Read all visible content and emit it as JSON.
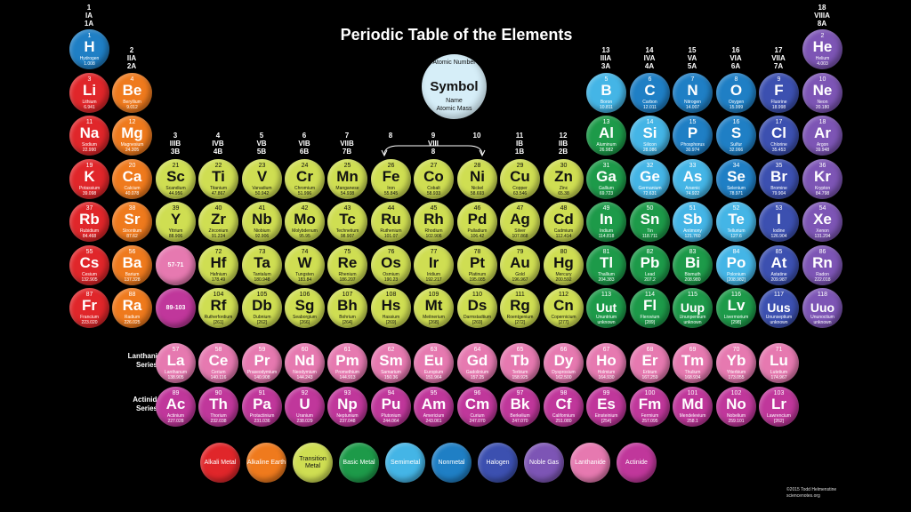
{
  "title": "Periodic Table of the Elements",
  "key": {
    "atomic_number": "Atomic Number",
    "symbol": "Symbol",
    "name": "Name",
    "atomic_mass": "Atomic  Mass"
  },
  "group_labels": [
    {
      "id": "g1",
      "lines": [
        "1",
        "IA",
        "1A"
      ]
    },
    {
      "id": "g2",
      "lines": [
        "2",
        "IIA",
        "2A"
      ]
    },
    {
      "id": "g3",
      "lines": [
        "3",
        "IIIB",
        "3B"
      ]
    },
    {
      "id": "g4",
      "lines": [
        "4",
        "IVB",
        "4B"
      ]
    },
    {
      "id": "g5",
      "lines": [
        "5",
        "VB",
        "5B"
      ]
    },
    {
      "id": "g6",
      "lines": [
        "6",
        "VIB",
        "6B"
      ]
    },
    {
      "id": "g7",
      "lines": [
        "7",
        "VIIB",
        "7B"
      ]
    },
    {
      "id": "g8",
      "lines": [
        "8"
      ]
    },
    {
      "id": "g9",
      "lines": [
        "9",
        "VIII",
        "8"
      ]
    },
    {
      "id": "g10",
      "lines": [
        "10"
      ]
    },
    {
      "id": "g11",
      "lines": [
        "11",
        "IB",
        "1B"
      ]
    },
    {
      "id": "g12",
      "lines": [
        "12",
        "IIB",
        "2B"
      ]
    },
    {
      "id": "g13",
      "lines": [
        "13",
        "IIIA",
        "3A"
      ]
    },
    {
      "id": "g14",
      "lines": [
        "14",
        "IVA",
        "4A"
      ]
    },
    {
      "id": "g15",
      "lines": [
        "15",
        "VA",
        "5A"
      ]
    },
    {
      "id": "g16",
      "lines": [
        "16",
        "VIA",
        "6A"
      ]
    },
    {
      "id": "g17",
      "lines": [
        "17",
        "VIIA",
        "7A"
      ]
    },
    {
      "id": "g18",
      "lines": [
        "18",
        "VIIIA",
        "8A"
      ]
    }
  ],
  "categories": {
    "alkali": {
      "label": "Alkali Metal",
      "color": "#e0262a"
    },
    "alkaline": {
      "label": "Alkaline Earth",
      "color": "#ef7a1d"
    },
    "transition": {
      "label": "Transition Metal",
      "color": "#cfde52"
    },
    "basic": {
      "label": "Basic Metal",
      "color": "#1d9a49"
    },
    "semimetal": {
      "label": "Semimetal",
      "color": "#44b5e6"
    },
    "nonmetal": {
      "label": "Nonmetal",
      "color": "#1f7fc5"
    },
    "halogen": {
      "label": "Halogen",
      "color": "#3c50b0"
    },
    "noble": {
      "label": "Noble Gas",
      "color": "#7d55b5"
    },
    "lanthanide": {
      "label": "Lanthanide",
      "color": "#e679b0"
    },
    "actinide": {
      "label": "Actinide",
      "color": "#c0379b"
    }
  },
  "placeholders": [
    {
      "id": "lan",
      "label": "57-71",
      "color": "#e679b0"
    },
    {
      "id": "act",
      "label": "89-103",
      "color": "#c0379b"
    }
  ],
  "series_labels": {
    "lanthanide": "Lanthanide Series",
    "actinide": "Actinide Series"
  },
  "credit": [
    "©2015 Todd Helmenstine",
    "sciencenotes.org"
  ],
  "elements": [
    {
      "n": 1,
      "s": "H",
      "name": "Hydrogen",
      "m": "1.008",
      "c": "nonmetal"
    },
    {
      "n": 2,
      "s": "He",
      "name": "Helium",
      "m": "4.003",
      "c": "noble"
    },
    {
      "n": 3,
      "s": "Li",
      "name": "Lithium",
      "m": "6.941",
      "c": "alkali"
    },
    {
      "n": 4,
      "s": "Be",
      "name": "Beryllium",
      "m": "9.012",
      "c": "alkaline"
    },
    {
      "n": 5,
      "s": "B",
      "name": "Boron",
      "m": "10.811",
      "c": "semimetal"
    },
    {
      "n": 6,
      "s": "C",
      "name": "Carbon",
      "m": "12.011",
      "c": "nonmetal"
    },
    {
      "n": 7,
      "s": "N",
      "name": "Nitrogen",
      "m": "14.007",
      "c": "nonmetal"
    },
    {
      "n": 8,
      "s": "O",
      "name": "Oxygen",
      "m": "15.999",
      "c": "nonmetal"
    },
    {
      "n": 9,
      "s": "F",
      "name": "Fluorine",
      "m": "18.998",
      "c": "halogen"
    },
    {
      "n": 10,
      "s": "Ne",
      "name": "Neon",
      "m": "20.180",
      "c": "noble"
    },
    {
      "n": 11,
      "s": "Na",
      "name": "Sodium",
      "m": "22.990",
      "c": "alkali"
    },
    {
      "n": 12,
      "s": "Mg",
      "name": "Magnesium",
      "m": "24.305",
      "c": "alkaline"
    },
    {
      "n": 13,
      "s": "Al",
      "name": "Aluminum",
      "m": "26.982",
      "c": "basic"
    },
    {
      "n": 14,
      "s": "Si",
      "name": "Silicon",
      "m": "28.086",
      "c": "semimetal"
    },
    {
      "n": 15,
      "s": "P",
      "name": "Phosphorus",
      "m": "30.974",
      "c": "nonmetal"
    },
    {
      "n": 16,
      "s": "S",
      "name": "Sulfur",
      "m": "32.066",
      "c": "nonmetal"
    },
    {
      "n": 17,
      "s": "Cl",
      "name": "Chlorine",
      "m": "35.453",
      "c": "halogen"
    },
    {
      "n": 18,
      "s": "Ar",
      "name": "Argon",
      "m": "39.948",
      "c": "noble"
    },
    {
      "n": 19,
      "s": "K",
      "name": "Potassium",
      "m": "39.098",
      "c": "alkali"
    },
    {
      "n": 20,
      "s": "Ca",
      "name": "Calcium",
      "m": "40.078",
      "c": "alkaline"
    },
    {
      "n": 21,
      "s": "Sc",
      "name": "Scandium",
      "m": "44.956",
      "c": "transition"
    },
    {
      "n": 22,
      "s": "Ti",
      "name": "Titanium",
      "m": "47.867",
      "c": "transition"
    },
    {
      "n": 23,
      "s": "V",
      "name": "Vanadium",
      "m": "50.942",
      "c": "transition"
    },
    {
      "n": 24,
      "s": "Cr",
      "name": "Chromium",
      "m": "51.996",
      "c": "transition"
    },
    {
      "n": 25,
      "s": "Mn",
      "name": "Manganese",
      "m": "54.938",
      "c": "transition"
    },
    {
      "n": 26,
      "s": "Fe",
      "name": "Iron",
      "m": "55.845",
      "c": "transition"
    },
    {
      "n": 27,
      "s": "Co",
      "name": "Cobalt",
      "m": "58.933",
      "c": "transition"
    },
    {
      "n": 28,
      "s": "Ni",
      "name": "Nickel",
      "m": "58.693",
      "c": "transition"
    },
    {
      "n": 29,
      "s": "Cu",
      "name": "Copper",
      "m": "63.546",
      "c": "transition"
    },
    {
      "n": 30,
      "s": "Zn",
      "name": "Zinc",
      "m": "65.38",
      "c": "transition"
    },
    {
      "n": 31,
      "s": "Ga",
      "name": "Gallium",
      "m": "69.723",
      "c": "basic"
    },
    {
      "n": 32,
      "s": "Ge",
      "name": "Germanium",
      "m": "72.631",
      "c": "semimetal"
    },
    {
      "n": 33,
      "s": "As",
      "name": "Arsenic",
      "m": "74.922",
      "c": "semimetal"
    },
    {
      "n": 34,
      "s": "Se",
      "name": "Selenium",
      "m": "78.971",
      "c": "nonmetal"
    },
    {
      "n": 35,
      "s": "Br",
      "name": "Bromine",
      "m": "79.904",
      "c": "halogen"
    },
    {
      "n": 36,
      "s": "Kr",
      "name": "Krypton",
      "m": "84.798",
      "c": "noble"
    },
    {
      "n": 37,
      "s": "Rb",
      "name": "Rubidium",
      "m": "84.468",
      "c": "alkali"
    },
    {
      "n": 38,
      "s": "Sr",
      "name": "Strontium",
      "m": "87.62",
      "c": "alkaline"
    },
    {
      "n": 39,
      "s": "Y",
      "name": "Yttrium",
      "m": "88.906",
      "c": "transition"
    },
    {
      "n": 40,
      "s": "Zr",
      "name": "Zirconium",
      "m": "91.224",
      "c": "transition"
    },
    {
      "n": 41,
      "s": "Nb",
      "name": "Niobium",
      "m": "92.906",
      "c": "transition"
    },
    {
      "n": 42,
      "s": "Mo",
      "name": "Molybdenum",
      "m": "95.95",
      "c": "transition"
    },
    {
      "n": 43,
      "s": "Tc",
      "name": "Technetium",
      "m": "98.907",
      "c": "transition"
    },
    {
      "n": 44,
      "s": "Ru",
      "name": "Ruthenium",
      "m": "101.07",
      "c": "transition"
    },
    {
      "n": 45,
      "s": "Rh",
      "name": "Rhodium",
      "m": "102.906",
      "c": "transition"
    },
    {
      "n": 46,
      "s": "Pd",
      "name": "Palladium",
      "m": "106.42",
      "c": "transition"
    },
    {
      "n": 47,
      "s": "Ag",
      "name": "Silver",
      "m": "107.868",
      "c": "transition"
    },
    {
      "n": 48,
      "s": "Cd",
      "name": "Cadmium",
      "m": "112.414",
      "c": "transition"
    },
    {
      "n": 49,
      "s": "In",
      "name": "Indium",
      "m": "114.818",
      "c": "basic"
    },
    {
      "n": 50,
      "s": "Sn",
      "name": "Tin",
      "m": "118.711",
      "c": "basic"
    },
    {
      "n": 51,
      "s": "Sb",
      "name": "Antimony",
      "m": "121.760",
      "c": "semimetal"
    },
    {
      "n": 52,
      "s": "Te",
      "name": "Tellurium",
      "m": "127.6",
      "c": "semimetal"
    },
    {
      "n": 53,
      "s": "I",
      "name": "Iodine",
      "m": "126.904",
      "c": "halogen"
    },
    {
      "n": 54,
      "s": "Xe",
      "name": "Xenon",
      "m": "131.294",
      "c": "noble"
    },
    {
      "n": 55,
      "s": "Cs",
      "name": "Cesium",
      "m": "132.905",
      "c": "alkali"
    },
    {
      "n": 56,
      "s": "Ba",
      "name": "Barium",
      "m": "137.328",
      "c": "alkaline"
    },
    {
      "n": 72,
      "s": "Hf",
      "name": "Hafnium",
      "m": "178.49",
      "c": "transition"
    },
    {
      "n": 73,
      "s": "Ta",
      "name": "Tantalum",
      "m": "180.948",
      "c": "transition"
    },
    {
      "n": 74,
      "s": "W",
      "name": "Tungsten",
      "m": "183.84",
      "c": "transition"
    },
    {
      "n": 75,
      "s": "Re",
      "name": "Rhenium",
      "m": "186.207",
      "c": "transition"
    },
    {
      "n": 76,
      "s": "Os",
      "name": "Osmium",
      "m": "190.23",
      "c": "transition"
    },
    {
      "n": 77,
      "s": "Ir",
      "name": "Iridium",
      "m": "192.217",
      "c": "transition"
    },
    {
      "n": 78,
      "s": "Pt",
      "name": "Platinum",
      "m": "195.085",
      "c": "transition"
    },
    {
      "n": 79,
      "s": "Au",
      "name": "Gold",
      "m": "196.967",
      "c": "transition"
    },
    {
      "n": 80,
      "s": "Hg",
      "name": "Mercury",
      "m": "200.592",
      "c": "transition"
    },
    {
      "n": 81,
      "s": "Tl",
      "name": "Thallium",
      "m": "204.383",
      "c": "basic"
    },
    {
      "n": 82,
      "s": "Pb",
      "name": "Lead",
      "m": "207.2",
      "c": "basic"
    },
    {
      "n": 83,
      "s": "Bi",
      "name": "Bismuth",
      "m": "208.980",
      "c": "basic"
    },
    {
      "n": 84,
      "s": "Po",
      "name": "Polonium",
      "m": "[208.982]",
      "c": "semimetal"
    },
    {
      "n": 85,
      "s": "At",
      "name": "Astatine",
      "m": "209.987",
      "c": "halogen"
    },
    {
      "n": 86,
      "s": "Rn",
      "name": "Radon",
      "m": "222.018",
      "c": "noble"
    },
    {
      "n": 87,
      "s": "Fr",
      "name": "Francium",
      "m": "223.020",
      "c": "alkali"
    },
    {
      "n": 88,
      "s": "Ra",
      "name": "Radium",
      "m": "226.025",
      "c": "alkaline"
    },
    {
      "n": 104,
      "s": "Rf",
      "name": "Rutherfordium",
      "m": "[261]",
      "c": "transition"
    },
    {
      "n": 105,
      "s": "Db",
      "name": "Dubnium",
      "m": "[262]",
      "c": "transition"
    },
    {
      "n": 106,
      "s": "Sg",
      "name": "Seaborgium",
      "m": "[266]",
      "c": "transition"
    },
    {
      "n": 107,
      "s": "Bh",
      "name": "Bohrium",
      "m": "[264]",
      "c": "transition"
    },
    {
      "n": 108,
      "s": "Hs",
      "name": "Hassium",
      "m": "[269]",
      "c": "transition"
    },
    {
      "n": 109,
      "s": "Mt",
      "name": "Meitnerium",
      "m": "[268]",
      "c": "transition"
    },
    {
      "n": 110,
      "s": "Ds",
      "name": "Darmstadtium",
      "m": "[269]",
      "c": "transition"
    },
    {
      "n": 111,
      "s": "Rg",
      "name": "Roentgenium",
      "m": "[272]",
      "c": "transition"
    },
    {
      "n": 112,
      "s": "Cn",
      "name": "Copernicium",
      "m": "[277]",
      "c": "transition"
    },
    {
      "n": 113,
      "s": "Uut",
      "name": "Ununtrium",
      "m": "unknown",
      "c": "basic"
    },
    {
      "n": 114,
      "s": "Fl",
      "name": "Flerovium",
      "m": "[289]",
      "c": "basic"
    },
    {
      "n": 115,
      "s": "Uup",
      "name": "Ununpentium",
      "m": "unknown",
      "c": "basic"
    },
    {
      "n": 116,
      "s": "Lv",
      "name": "Livermorium",
      "m": "[298]",
      "c": "basic"
    },
    {
      "n": 117,
      "s": "Uus",
      "name": "Ununseptium",
      "m": "unknown",
      "c": "halogen"
    },
    {
      "n": 118,
      "s": "Uuo",
      "name": "Ununoctium",
      "m": "unknown",
      "c": "noble"
    },
    {
      "n": 57,
      "s": "La",
      "name": "Lanthanum",
      "m": "138.905",
      "c": "lanthanide"
    },
    {
      "n": 58,
      "s": "Ce",
      "name": "Cerium",
      "m": "140.116",
      "c": "lanthanide"
    },
    {
      "n": 59,
      "s": "Pr",
      "name": "Praseodymium",
      "m": "140.908",
      "c": "lanthanide"
    },
    {
      "n": 60,
      "s": "Nd",
      "name": "Neodymium",
      "m": "144.243",
      "c": "lanthanide"
    },
    {
      "n": 61,
      "s": "Pm",
      "name": "Promethium",
      "m": "144.913",
      "c": "lanthanide"
    },
    {
      "n": 62,
      "s": "Sm",
      "name": "Samarium",
      "m": "150.36",
      "c": "lanthanide"
    },
    {
      "n": 63,
      "s": "Eu",
      "name": "Europium",
      "m": "151.964",
      "c": "lanthanide"
    },
    {
      "n": 64,
      "s": "Gd",
      "name": "Gadolinium",
      "m": "157.25",
      "c": "lanthanide"
    },
    {
      "n": 65,
      "s": "Tb",
      "name": "Terbium",
      "m": "158.925",
      "c": "lanthanide"
    },
    {
      "n": 66,
      "s": "Dy",
      "name": "Dysprosium",
      "m": "162.500",
      "c": "lanthanide"
    },
    {
      "n": 67,
      "s": "Ho",
      "name": "Holmium",
      "m": "164.930",
      "c": "lanthanide"
    },
    {
      "n": 68,
      "s": "Er",
      "name": "Erbium",
      "m": "167.259",
      "c": "lanthanide"
    },
    {
      "n": 69,
      "s": "Tm",
      "name": "Thulium",
      "m": "168.934",
      "c": "lanthanide"
    },
    {
      "n": 70,
      "s": "Yb",
      "name": "Ytterbium",
      "m": "173.055",
      "c": "lanthanide"
    },
    {
      "n": 71,
      "s": "Lu",
      "name": "Lutetium",
      "m": "174.967",
      "c": "lanthanide"
    },
    {
      "n": 89,
      "s": "Ac",
      "name": "Actinium",
      "m": "227.028",
      "c": "actinide"
    },
    {
      "n": 90,
      "s": "Th",
      "name": "Thorium",
      "m": "232.038",
      "c": "actinide"
    },
    {
      "n": 91,
      "s": "Pa",
      "name": "Protactinium",
      "m": "231.036",
      "c": "actinide"
    },
    {
      "n": 92,
      "s": "U",
      "name": "Uranium",
      "m": "238.029",
      "c": "actinide"
    },
    {
      "n": 93,
      "s": "Np",
      "name": "Neptunium",
      "m": "237.048",
      "c": "actinide"
    },
    {
      "n": 94,
      "s": "Pu",
      "name": "Plutonium",
      "m": "244.064",
      "c": "actinide"
    },
    {
      "n": 95,
      "s": "Am",
      "name": "Americium",
      "m": "243.061",
      "c": "actinide"
    },
    {
      "n": 96,
      "s": "Cm",
      "name": "Curium",
      "m": "247.070",
      "c": "actinide"
    },
    {
      "n": 97,
      "s": "Bk",
      "name": "Berkelium",
      "m": "247.070",
      "c": "actinide"
    },
    {
      "n": 98,
      "s": "Cf",
      "name": "Californium",
      "m": "251.080",
      "c": "actinide"
    },
    {
      "n": 99,
      "s": "Es",
      "name": "Einsteinium",
      "m": "[254]",
      "c": "actinide"
    },
    {
      "n": 100,
      "s": "Fm",
      "name": "Fermium",
      "m": "257.095",
      "c": "actinide"
    },
    {
      "n": 101,
      "s": "Md",
      "name": "Mendelevium",
      "m": "258.1",
      "c": "actinide"
    },
    {
      "n": 102,
      "s": "No",
      "name": "Nobelium",
      "m": "259.101",
      "c": "actinide"
    },
    {
      "n": 103,
      "s": "Lr",
      "name": "Lawrencium",
      "m": "[262]",
      "c": "actinide"
    }
  ]
}
